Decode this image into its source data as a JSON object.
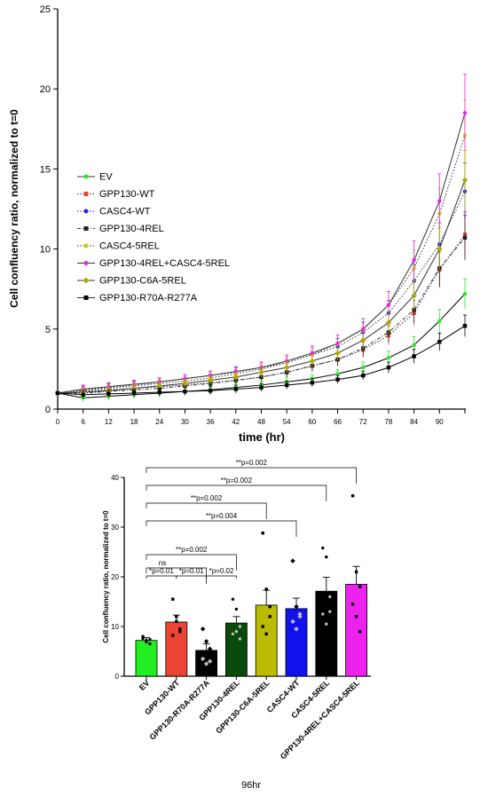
{
  "chart_data": [
    {
      "type": "line",
      "xlabel": "time (hr)",
      "ylabel": "Cell confluency ratio, normalized to t=0",
      "xlim": [
        0,
        96
      ],
      "ylim": [
        0,
        25
      ],
      "x_ticks": [
        "0",
        "6",
        "12",
        "18",
        "24",
        "30",
        "36",
        "42",
        "48",
        "54",
        "60",
        "66",
        "72",
        "78",
        "84",
        "90"
      ],
      "y_ticks": [
        "0",
        "5",
        "10",
        "15",
        "20",
        "25"
      ],
      "x": [
        0,
        6,
        12,
        18,
        24,
        30,
        36,
        42,
        48,
        54,
        60,
        66,
        72,
        78,
        84,
        90,
        96
      ],
      "legend_position": "left",
      "series": [
        {
          "name": "EV",
          "color": "#22ee22",
          "marker": "circle",
          "dash": "solid",
          "values": [
            1.0,
            0.7,
            0.8,
            0.9,
            1.0,
            1.1,
            1.2,
            1.35,
            1.5,
            1.7,
            1.9,
            2.2,
            2.6,
            3.2,
            4.0,
            5.5,
            7.2
          ]
        },
        {
          "name": "GPP130-WT",
          "color": "#ee4433",
          "marker": "square",
          "dash": "dot",
          "values": [
            1.0,
            1.1,
            1.2,
            1.3,
            1.4,
            1.5,
            1.65,
            1.8,
            2.0,
            2.3,
            2.7,
            3.1,
            3.7,
            4.6,
            6.0,
            8.7,
            10.9
          ]
        },
        {
          "name": "CASC4-WT",
          "color": "#2222ee",
          "marker": "circle",
          "dash": "dot",
          "values": [
            1.0,
            1.2,
            1.35,
            1.5,
            1.7,
            1.9,
            2.1,
            2.3,
            2.6,
            2.9,
            3.4,
            3.9,
            4.8,
            6.0,
            8.0,
            10.3,
            13.6
          ]
        },
        {
          "name": "GPP130-4REL",
          "color": "#222222",
          "marker": "square",
          "dash": "dashdot",
          "values": [
            1.0,
            1.0,
            1.1,
            1.2,
            1.3,
            1.45,
            1.6,
            1.8,
            2.0,
            2.3,
            2.7,
            3.1,
            3.8,
            4.8,
            6.2,
            8.8,
            10.7
          ]
        },
        {
          "name": "CASC4-5REL",
          "color": "#cccc00",
          "marker": "circle",
          "dash": "dot",
          "values": [
            1.0,
            1.15,
            1.3,
            1.45,
            1.6,
            1.75,
            1.95,
            2.2,
            2.5,
            2.9,
            3.4,
            4.1,
            5.0,
            6.5,
            8.8,
            12.2,
            17.1
          ]
        },
        {
          "name": "GPP130-4REL+CASC4-5REL",
          "color": "#ee22ee",
          "marker": "circle",
          "dash": "solid",
          "values": [
            1.0,
            1.25,
            1.4,
            1.55,
            1.7,
            1.9,
            2.1,
            2.35,
            2.6,
            3.0,
            3.5,
            4.1,
            5.0,
            6.5,
            9.3,
            13.0,
            18.5
          ]
        },
        {
          "name": "GPP130-C6A-5REL",
          "color": "#aaaa00",
          "marker": "diamond",
          "dash": "solid",
          "values": [
            1.0,
            1.05,
            1.15,
            1.3,
            1.45,
            1.6,
            1.8,
            2.0,
            2.3,
            2.6,
            3.0,
            3.5,
            4.3,
            5.4,
            7.1,
            10.0,
            14.3
          ]
        },
        {
          "name": "GPP130-R70A-R277A",
          "color": "#000000",
          "marker": "square",
          "dash": "solid",
          "values": [
            1.0,
            0.9,
            0.95,
            1.0,
            1.05,
            1.1,
            1.15,
            1.25,
            1.35,
            1.5,
            1.65,
            1.85,
            2.1,
            2.6,
            3.3,
            4.2,
            5.2
          ]
        }
      ]
    },
    {
      "type": "bar",
      "caption": "96hr",
      "ylabel": "Cell confluency ratio, normalized to t=0",
      "ylim": [
        0,
        40
      ],
      "y_ticks": [
        "0",
        "10",
        "20",
        "30",
        "40"
      ],
      "categories": [
        "EV",
        "GPP130-WT",
        "GPP130-R70A-R277A",
        "GPP130-4REL",
        "GPP130-C6A-5REL",
        "CASC4-WT",
        "CASC4-5REL",
        "GPP130-4REL+CASC4-5REL"
      ],
      "values": [
        7.2,
        10.9,
        5.2,
        10.7,
        14.3,
        13.6,
        17.1,
        18.5
      ],
      "errors": [
        0.6,
        1.4,
        1.3,
        1.3,
        3.0,
        2.1,
        2.8,
        3.6
      ],
      "colors": [
        "#22ee22",
        "#ee4433",
        "#000000",
        "#0a4a0a",
        "#bbbb00",
        "#1111ee",
        "#000000",
        "#ee22ee"
      ],
      "points": [
        [
          8.0,
          7.2,
          6.5,
          7.6,
          6.9,
          7.4
        ],
        [
          15.5,
          12.0,
          9.5,
          8.2,
          11.0,
          9.0
        ],
        [
          9.5,
          7.0,
          5.5,
          3.5,
          2.5,
          3.0
        ],
        [
          15.5,
          13.5,
          10.0,
          8.5,
          9.0,
          7.5
        ],
        [
          28.8,
          17.5,
          14.0,
          10.0,
          8.5,
          12.0
        ],
        [
          23.2,
          14.0,
          12.5,
          11.0,
          9.5,
          12.0
        ],
        [
          25.8,
          24.0,
          16.0,
          12.5,
          10.5,
          13.0
        ],
        [
          36.3,
          21.0,
          18.0,
          14.5,
          12.0,
          9.0
        ]
      ],
      "significance": [
        {
          "from": 0,
          "to": 1,
          "label": "*p=0.01"
        },
        {
          "from": 1,
          "to": 2,
          "label": "*p=0.01"
        },
        {
          "from": 2,
          "to": 3,
          "label": "*p=0.02"
        },
        {
          "from": 0,
          "to": 2,
          "label": "ns"
        },
        {
          "from": 0,
          "to": 3,
          "label": "**p=0.002"
        },
        {
          "from": 0,
          "to": 5,
          "label": "**p=0.004"
        },
        {
          "from": 0,
          "to": 4,
          "label": "**p=0.002"
        },
        {
          "from": 0,
          "to": 6,
          "label": "**p=0.002"
        },
        {
          "from": 0,
          "to": 7,
          "label": "**p=0.002"
        }
      ]
    }
  ]
}
